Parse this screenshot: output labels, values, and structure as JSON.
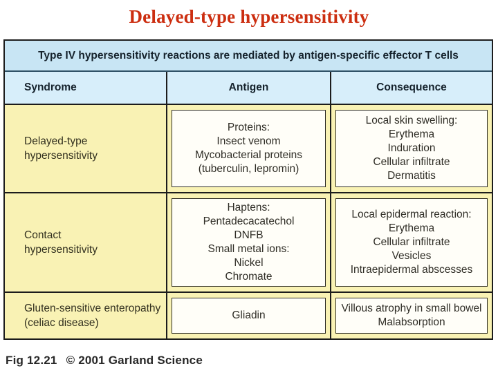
{
  "title": "Delayed-type hypersensitivity",
  "table": {
    "banner": "Type IV hypersensitivity reactions are mediated by antigen-specific effector T cells",
    "columns": [
      "Syndrome",
      "Antigen",
      "Consequence"
    ],
    "rows": [
      {
        "syndrome": [
          "Delayed-type",
          "hypersensitivity"
        ],
        "antigen": [
          "Proteins:",
          "Insect venom",
          "Mycobacterial proteins",
          "(tuberculin, lepromin)"
        ],
        "consequence": [
          "Local skin swelling:",
          "Erythema",
          "Induration",
          "Cellular infiltrate",
          "Dermatitis"
        ]
      },
      {
        "syndrome": [
          "Contact",
          "hypersensitivity"
        ],
        "antigen": [
          "Haptens:",
          "Pentadecacatechol",
          "DNFB",
          "Small metal ions:",
          "Nickel",
          "Chromate"
        ],
        "consequence": [
          "Local epidermal reaction:",
          "Erythema",
          "Cellular infiltrate",
          "Vesicles",
          "Intraepidermal abscesses"
        ]
      },
      {
        "syndrome": [
          "Gluten-sensitive enteropathy",
          "(celiac disease)"
        ],
        "antigen": [
          "Gliadin"
        ],
        "consequence": [
          "Villous atrophy in small bowel",
          "Malabsorption"
        ]
      }
    ]
  },
  "caption": {
    "fig": "Fig 12.21",
    "copyright": "© 2001 Garland Science"
  },
  "colors": {
    "title_red": "#cc2e10",
    "banner_blue": "#c8e5f4",
    "column_header_blue": "#d7eefa",
    "cell_yellow": "#f9f2b4",
    "box_white": "#fffef8",
    "border_dark": "#1c1c1c"
  }
}
